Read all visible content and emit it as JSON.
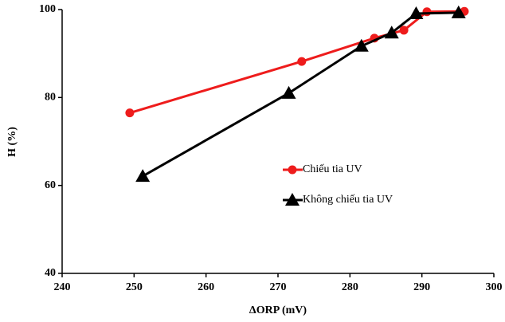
{
  "chart_data": {
    "type": "line",
    "x_label": "ΔORP (mV)",
    "y_label": "H (%)",
    "xlim": [
      240,
      300
    ],
    "xticks": [
      240,
      250,
      260,
      270,
      280,
      290,
      300
    ],
    "ylim": [
      40,
      100
    ],
    "yticks": [
      40,
      60,
      80,
      100
    ],
    "series": [
      {
        "name": "Chiếu tia UV",
        "color": "#ee1c1c",
        "marker": "circle",
        "x": [
          249.4,
          273.3,
          283.4,
          287.5,
          290.7,
          295.9
        ],
        "values": [
          76.5,
          88.2,
          93.5,
          95.3,
          99.5,
          99.6
        ]
      },
      {
        "name": "Không chiếu tia UV",
        "color": "#000000",
        "marker": "triangle",
        "x": [
          251.2,
          271.5,
          281.6,
          285.8,
          289.2,
          295.1
        ],
        "values": [
          62.1,
          81.0,
          91.7,
          94.7,
          99.1,
          99.3
        ]
      }
    ]
  }
}
